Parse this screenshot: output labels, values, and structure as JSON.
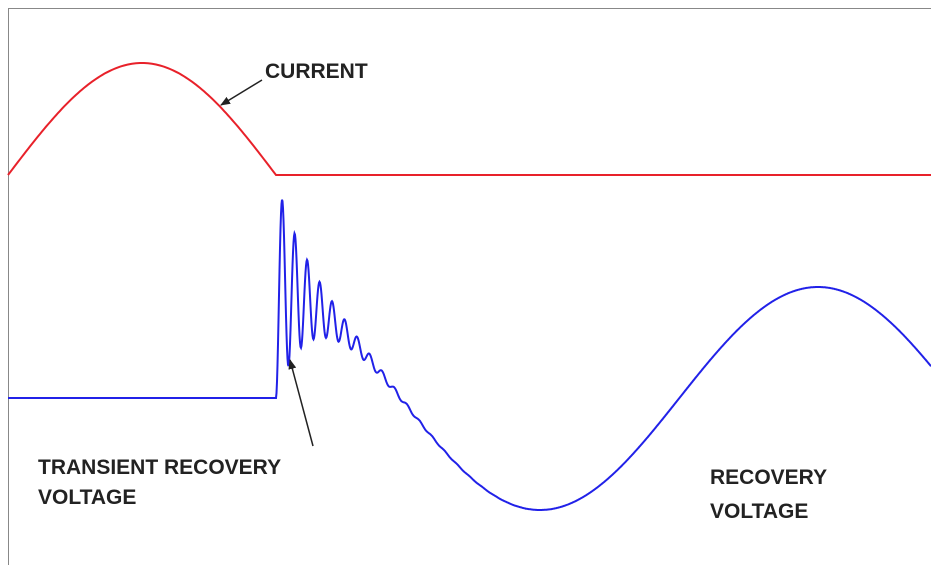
{
  "labels": {
    "current": "CURRENT",
    "transient": [
      "TRANSIENT RECOVERY",
      "VOLTAGE"
    ],
    "recovery": [
      "RECOVERY",
      "VOLTAGE"
    ]
  }
}
